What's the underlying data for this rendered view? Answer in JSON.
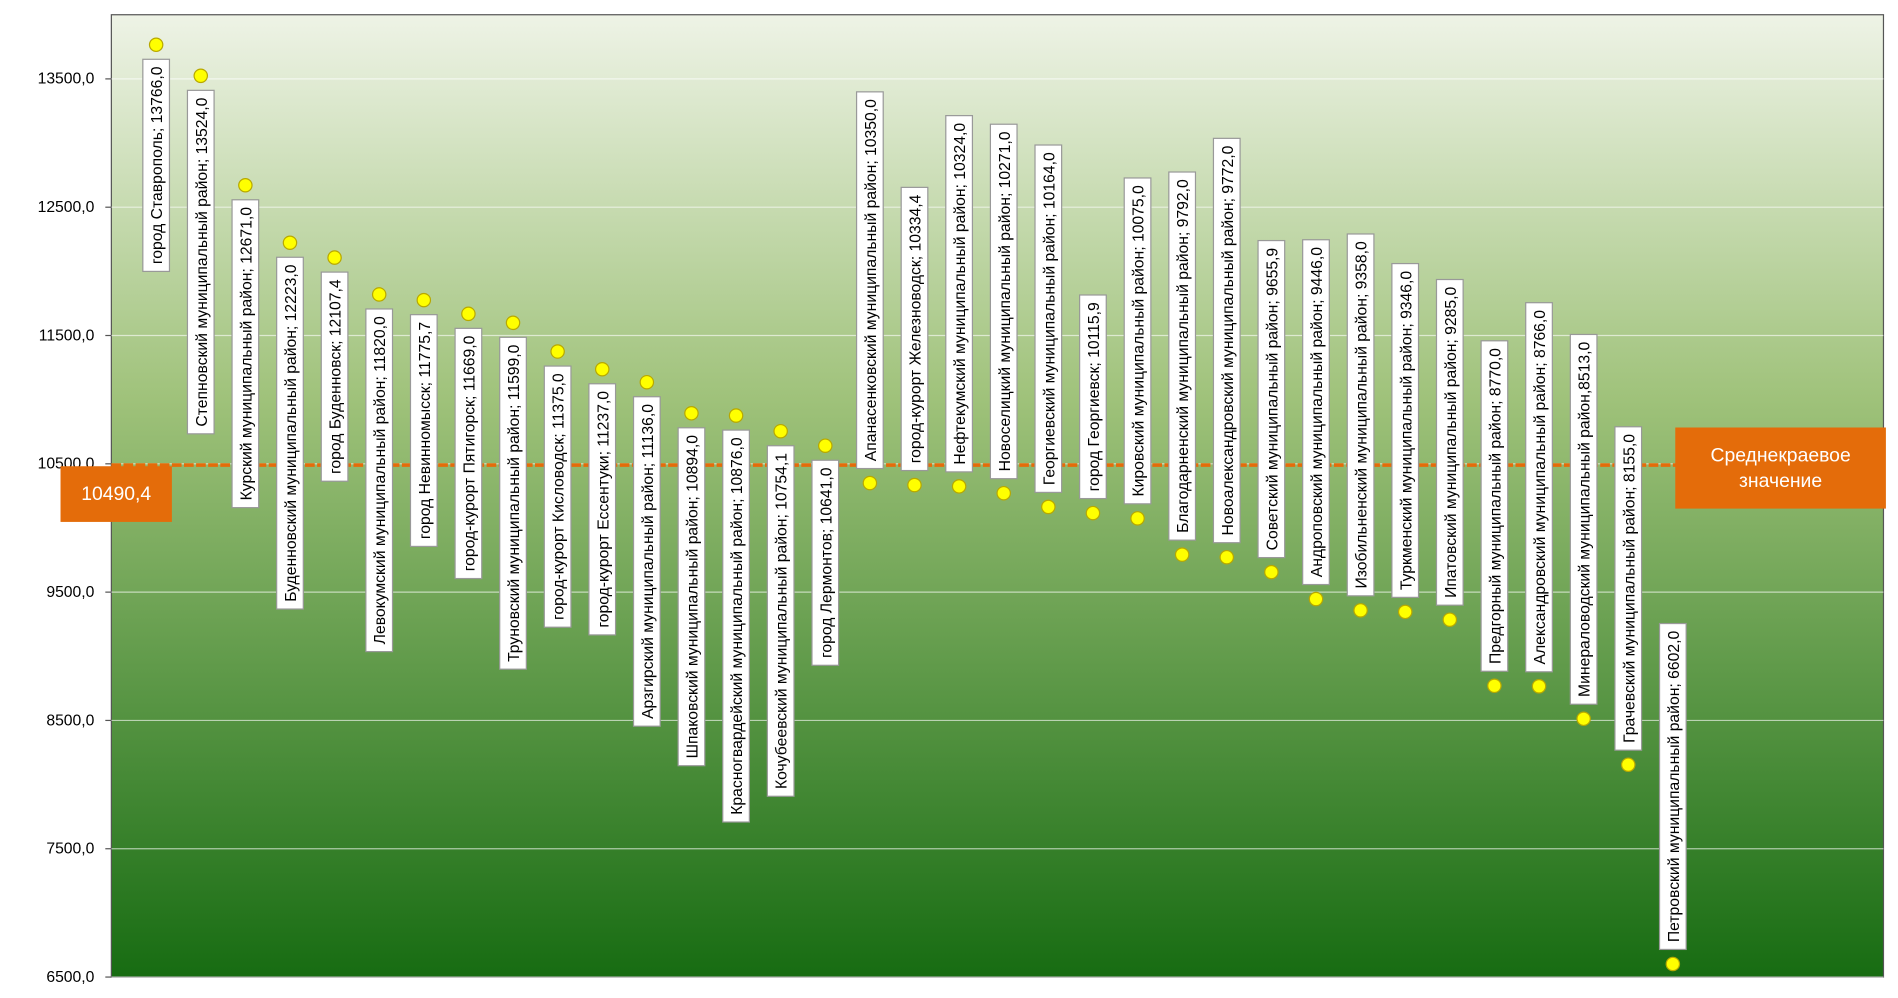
{
  "chart_data": {
    "type": "dot",
    "value_labels": [
      "город Ставрополь; 13766,0",
      "Степновский муниципальный район; 13524,0",
      "Курский муниципальный район; 12671,0",
      "Буденновский муниципальный район; 12223,0",
      "город Буденновск; 12107,4",
      "Левокумский муниципальный район; 11820,0",
      "город Невинномысск; 11775,7",
      "город-курорт Пятигорск; 11669,0",
      "Труновский муниципальный район; 11599,0",
      "город-курорт Кисловодск; 11375,0",
      "город-курорт Ессентуки; 11237,0",
      "Арзгирский муниципальный район; 11136,0",
      "Шпаковский муниципальный район; 10894,0",
      "Красногвардейский муниципальный район; 10876,0",
      "Кочубеевский муниципальный район; 10754,1",
      "город Лермонтов; 10641,0",
      "Апанасенковский муниципальный район; 10350,0",
      "город-курорт Железноводск; 10334,4",
      "Нефтекумский муниципальный район; 10324,0",
      "Новоселицкий муниципальный район; 10271,0",
      "Георгиевский муниципальный район; 10164,0",
      "город Георгиевск; 10115,9",
      "Кировский муниципальный район; 10075,0",
      "Благодарненский муниципальный район; 9792,0",
      "Новоалександровский муниципальный район; 9772,0",
      "Советский муниципальный район; 9655,9",
      "Андроповский муниципальный район; 9446,0",
      "Изобильненский муниципальный район; 9358,0",
      "Туркменский муниципальный район; 9346,0",
      "Ипатовский муниципальный район; 9285,0",
      "Предгорный муниципальный район; 8770,0",
      "Александровский муниципальный район; 8766,0",
      "Минераловодский муниципальный район,8513,0",
      "Грачевский муниципальный район; 8155,0",
      "Петровский муниципальный район; 6602,0"
    ],
    "values": [
      13766,
      13524,
      12671,
      12223,
      12107.4,
      11820,
      11775.7,
      11669,
      11599,
      11375,
      11237,
      11136,
      10894,
      10876,
      10754.1,
      10641,
      10350,
      10334.4,
      10324,
      10271,
      10164,
      10115.9,
      10075,
      9792,
      9772,
      9655.9,
      9446,
      9358,
      9346,
      9285,
      8770,
      8766,
      8513,
      8155,
      6602
    ],
    "color": "#ffff00",
    "average": {
      "value": 10490.4,
      "label": "10490,4",
      "name": "Среднекраевое значение",
      "color": "#e46c0a"
    },
    "ylim": [
      6500,
      14000
    ],
    "yticks": [
      {
        "value": 6500,
        "label": "6500,0"
      },
      {
        "value": 7500,
        "label": "7500,0"
      },
      {
        "value": 8500,
        "label": "8500,0"
      },
      {
        "value": 9500,
        "label": "9500,0"
      },
      {
        "value": 10500,
        "label": "10500,0"
      },
      {
        "value": 11500,
        "label": "11500,0"
      },
      {
        "value": 12500,
        "label": "12500,0"
      },
      {
        "value": 13500,
        "label": "13500,0"
      }
    ],
    "grid": true
  }
}
